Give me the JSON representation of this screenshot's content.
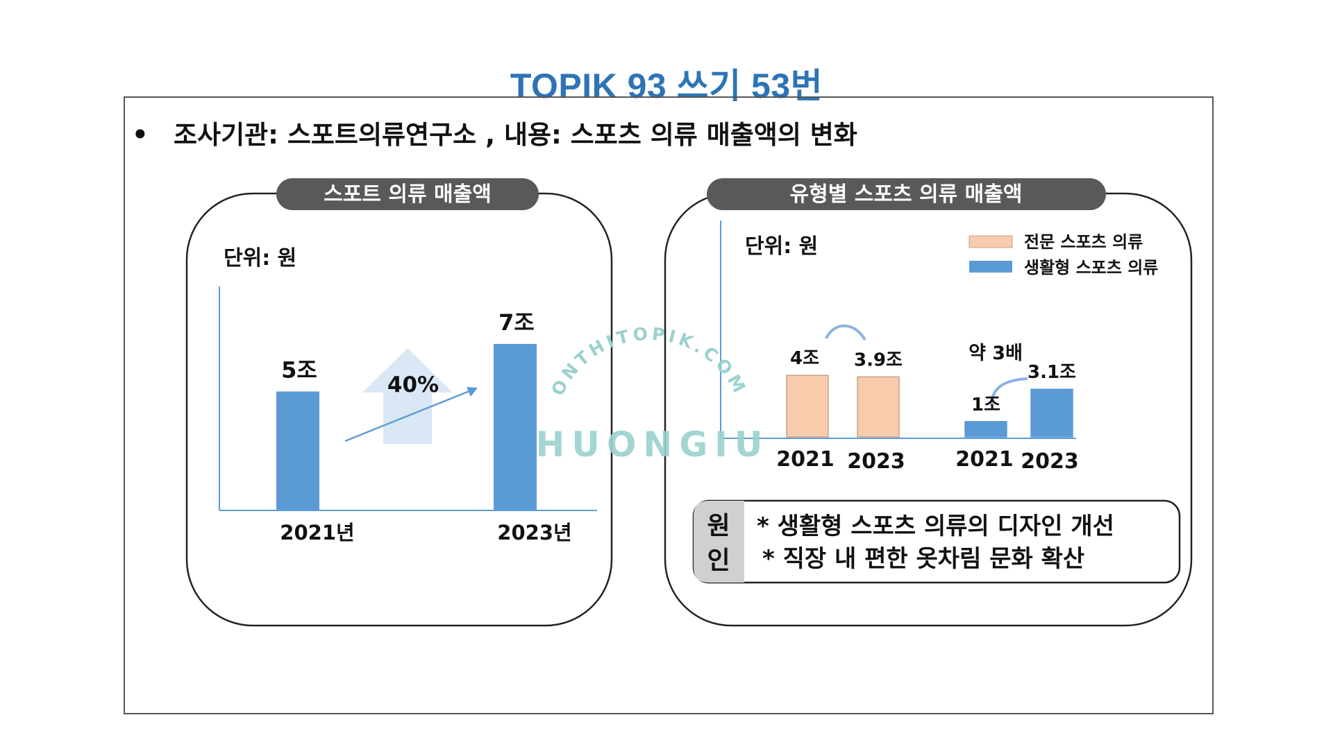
{
  "page": {
    "title": "TOPIK 93 쓰기 53번",
    "bullet": "•",
    "summary": "조사기관: 스포트의류연구소 , 내용: 스포츠 의류 매출액의 변화"
  },
  "watermark": {
    "arc_text": "ONTHITOPIK.COM",
    "main_text": "HUONGIU"
  },
  "colors": {
    "title_blue": "#2e74b5",
    "bar_blue": "#5b9bd5",
    "bar_peach": "#f8cbad",
    "panel_header": "#595959",
    "watermark": "#9ad1cf"
  },
  "chart_data": [
    {
      "type": "bar",
      "title": "스포트 의류 매출액",
      "unit_label": "단위: 원",
      "categories": [
        "2021년",
        "2023년"
      ],
      "values": [
        5,
        7
      ],
      "value_labels": [
        "5조",
        "7조"
      ],
      "annotation": "40%",
      "annotation_icon": "up-arrow-icon"
    },
    {
      "type": "bar",
      "title": "유형별 스포츠 의류 매출액",
      "unit_label": "단위: 원",
      "categories": [
        "2021",
        "2023",
        "2021",
        "2023"
      ],
      "series": [
        {
          "name": "전문 스포츠 의류",
          "color": "#f8cbad",
          "values": [
            4,
            3.9,
            null,
            null
          ],
          "labels": [
            "4조",
            "3.9조",
            "",
            ""
          ]
        },
        {
          "name": "생활형 스포츠 의류",
          "color": "#5b9bd5",
          "values": [
            null,
            null,
            1,
            3.1
          ],
          "labels": [
            "",
            "",
            "1조",
            "3.1조"
          ]
        }
      ],
      "annotation": "약 3배"
    }
  ],
  "reasons": {
    "label": [
      "원",
      "인"
    ],
    "items": [
      "* 생활형 스포츠 의류의 디자인 개선",
      "* 직장 내 편한 옷차림 문화 확산"
    ]
  }
}
